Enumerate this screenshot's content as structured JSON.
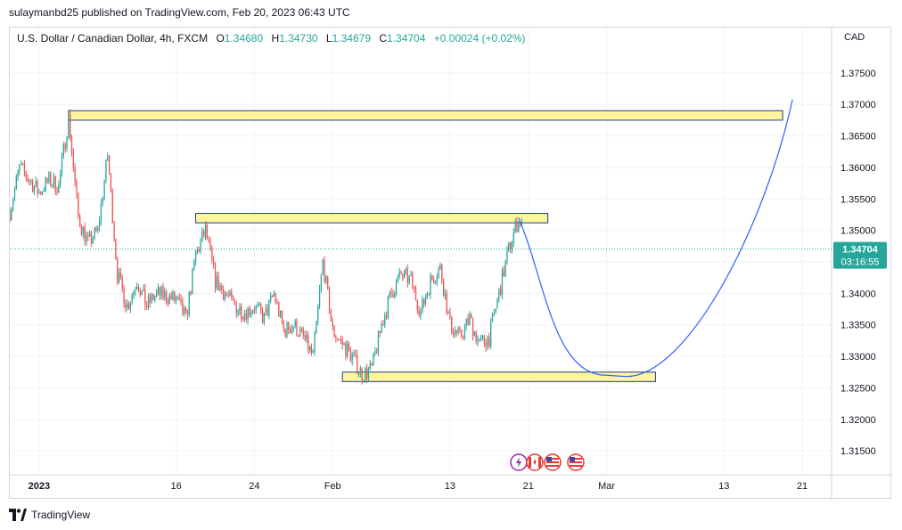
{
  "publish": {
    "text": "sulaymanbd25 published on TradingView.com, Feb 20, 2023 06:43 UTC"
  },
  "legend": {
    "symbol": "U.S. Dollar / Canadian Dollar, 4h, FXCM",
    "o_label": "O",
    "o_value": "1.34680",
    "h_label": "H",
    "h_value": "1.34730",
    "l_label": "L",
    "l_value": "1.34679",
    "c_label": "C",
    "c_value": "1.34704",
    "change": "+0.00024 (+0.02%)"
  },
  "price_axis": {
    "currency": "CAD"
  },
  "last_price": {
    "value": "1.34704",
    "countdown": "03:16:55",
    "price": 1.34704
  },
  "footer": {
    "brand": "TradingView"
  },
  "colors": {
    "up": "#26a69a",
    "down": "#ef5350",
    "zone_fill": "#fff59d",
    "zone_border": "#1e3a8a",
    "projection": "#2962ff",
    "last_price_bg": "#26a69a"
  },
  "event_icons": [
    "lightning-icon",
    "canada-flag-icon",
    "us-flag-icon",
    "us-flag-icon"
  ],
  "chart_data": {
    "type": "candlestick",
    "ylim": [
      1.3112,
      1.3788
    ],
    "yticks": [
      1.375,
      1.37,
      1.365,
      1.36,
      1.355,
      1.35,
      1.345,
      1.34,
      1.335,
      1.33,
      1.325,
      1.32,
      1.315
    ],
    "ytick_labels": [
      "1.37500",
      "1.37000",
      "1.36500",
      "1.36000",
      "1.35500",
      "1.35000",
      "1.34500",
      "1.34000",
      "1.33500",
      "1.33000",
      "1.32500",
      "1.32000",
      "1.31500"
    ],
    "xlim": [
      "2022-12-30",
      "2023-03-24"
    ],
    "xticks": [
      {
        "date": "2023-01-02",
        "label": "2023",
        "bold": true
      },
      {
        "date": "2023-01-16",
        "label": "16",
        "bold": false
      },
      {
        "date": "2023-01-24",
        "label": "24",
        "bold": false
      },
      {
        "date": "2023-02-01",
        "label": "Feb",
        "bold": false
      },
      {
        "date": "2023-02-13",
        "label": "13",
        "bold": false
      },
      {
        "date": "2023-02-21",
        "label": "21",
        "bold": false
      },
      {
        "date": "2023-03-01",
        "label": "Mar",
        "bold": false
      },
      {
        "date": "2023-03-13",
        "label": "13",
        "bold": false
      },
      {
        "date": "2023-03-21",
        "label": "21",
        "bold": false
      }
    ],
    "price_path": [
      [
        "2022-12-30",
        1.353
      ],
      [
        "2022-12-31",
        1.36
      ],
      [
        "2023-01-02",
        1.356
      ],
      [
        "2023-01-03",
        1.358
      ],
      [
        "2023-01-04",
        1.357
      ],
      [
        "2023-01-05",
        1.368
      ],
      [
        "2023-01-06",
        1.352
      ],
      [
        "2023-01-07",
        1.348
      ],
      [
        "2023-01-08",
        1.35
      ],
      [
        "2023-01-09",
        1.362
      ],
      [
        "2023-01-10",
        1.343
      ],
      [
        "2023-01-11",
        1.338
      ],
      [
        "2023-01-12",
        1.342
      ],
      [
        "2023-01-13",
        1.338
      ],
      [
        "2023-01-14",
        1.34
      ],
      [
        "2023-01-16",
        1.339
      ],
      [
        "2023-01-17",
        1.336
      ],
      [
        "2023-01-18",
        1.346
      ],
      [
        "2023-01-19",
        1.35
      ],
      [
        "2023-01-20",
        1.342
      ],
      [
        "2023-01-21",
        1.34
      ],
      [
        "2023-01-22",
        1.338
      ],
      [
        "2023-01-23",
        1.337
      ],
      [
        "2023-01-24",
        1.338
      ],
      [
        "2023-01-25",
        1.336
      ],
      [
        "2023-01-26",
        1.34
      ],
      [
        "2023-01-27",
        1.334
      ],
      [
        "2023-01-28",
        1.335
      ],
      [
        "2023-01-29",
        1.333
      ],
      [
        "2023-01-30",
        1.33
      ],
      [
        "2023-01-31",
        1.345
      ],
      [
        "2023-02-01",
        1.334
      ],
      [
        "2023-02-02",
        1.332
      ],
      [
        "2023-02-03",
        1.33
      ],
      [
        "2023-02-04",
        1.327
      ],
      [
        "2023-02-05",
        1.328
      ],
      [
        "2023-02-06",
        1.335
      ],
      [
        "2023-02-07",
        1.34
      ],
      [
        "2023-02-08",
        1.343
      ],
      [
        "2023-02-09",
        1.342
      ],
      [
        "2023-02-10",
        1.337
      ],
      [
        "2023-02-11",
        1.342
      ],
      [
        "2023-02-12",
        1.344
      ],
      [
        "2023-02-13",
        1.335
      ],
      [
        "2023-02-14",
        1.333
      ],
      [
        "2023-02-15",
        1.336
      ],
      [
        "2023-02-16",
        1.332
      ],
      [
        "2023-02-17",
        1.333
      ],
      [
        "2023-02-18",
        1.34
      ],
      [
        "2023-02-19",
        1.347
      ],
      [
        "2023-02-20",
        1.352
      ],
      [
        "2023-02-21",
        1.347
      ]
    ],
    "projection": [
      [
        "2023-02-20",
        1.352
      ],
      [
        "2023-03-01",
        1.327
      ],
      [
        "2023-03-03",
        1.3268
      ],
      [
        "2023-03-20",
        1.3708
      ]
    ],
    "zones": [
      {
        "from": "2023-01-05",
        "to": "2023-03-19",
        "top": 1.369,
        "bottom": 1.3675
      },
      {
        "from": "2023-01-18",
        "to": "2023-02-23",
        "top": 1.3527,
        "bottom": 1.3512
      },
      {
        "from": "2023-02-02",
        "to": "2023-03-06",
        "top": 1.3275,
        "bottom": 1.326
      }
    ]
  }
}
